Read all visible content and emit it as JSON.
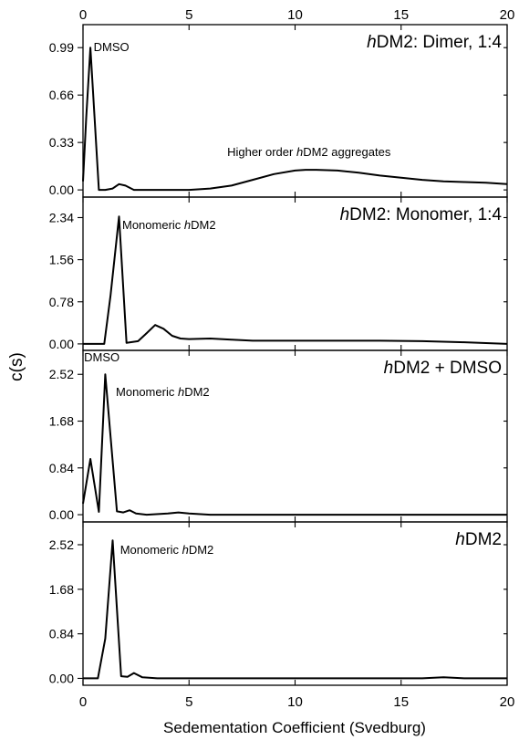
{
  "figure": {
    "ylabel": "c(s)",
    "xlabel": "Sedementation Coefficient (Svedburg)"
  },
  "chart_data": [
    {
      "type": "line",
      "title": "hDM2: Dimer, 1:4",
      "title_parts": [
        {
          "text": "h",
          "italic": true
        },
        {
          "text": "DM2: Dimer, 1:4",
          "italic": false
        }
      ],
      "xlim": [
        0,
        20
      ],
      "xticks": [
        0,
        5,
        10,
        15,
        20
      ],
      "ylim": [
        -0.05,
        1.15
      ],
      "yticks": [
        0.99,
        0.66,
        0.33,
        0.0
      ],
      "ytick_labels": [
        "0.99",
        "0.66",
        "0.33",
        "0.00"
      ],
      "x": [
        0,
        0.15,
        0.35,
        0.75,
        1.05,
        1.4,
        1.7,
        2.0,
        2.4,
        3.0,
        4.0,
        5.0,
        6.0,
        7.0,
        8.0,
        9.0,
        10.0,
        10.5,
        11.0,
        12.0,
        13.0,
        14.0,
        15.0,
        16.0,
        17.0,
        18.0,
        19.0,
        20.0
      ],
      "series": [
        {
          "values": [
            0.06,
            0.5,
            0.99,
            0.0,
            0.0,
            0.01,
            0.04,
            0.03,
            0.0,
            0.0,
            0.0,
            0.0,
            0.01,
            0.03,
            0.07,
            0.11,
            0.135,
            0.14,
            0.14,
            0.135,
            0.12,
            0.1,
            0.085,
            0.07,
            0.06,
            0.055,
            0.05,
            0.04
          ]
        }
      ],
      "annotations": [
        {
          "label_parts": [
            {
              "text": "DMSO",
              "italic": false
            }
          ],
          "x": 0.5,
          "y": 0.99
        },
        {
          "label_parts": [
            {
              "text": "Higher order ",
              "italic": false
            },
            {
              "text": "h",
              "italic": true
            },
            {
              "text": "DM2 aggregates",
              "italic": false
            }
          ],
          "x": 6.8,
          "y": 0.26
        }
      ]
    },
    {
      "type": "line",
      "title": "hDM2: Monomer, 1:4",
      "title_parts": [
        {
          "text": "h",
          "italic": true
        },
        {
          "text": "DM2: Monomer, 1:4",
          "italic": false
        }
      ],
      "xlim": [
        0,
        20
      ],
      "xticks": [
        0,
        5,
        10,
        15,
        20
      ],
      "ylim": [
        -0.12,
        2.72
      ],
      "yticks": [
        2.34,
        1.56,
        0.78,
        0.0
      ],
      "ytick_labels": [
        "2.34",
        "1.56",
        "0.78",
        "0.00"
      ],
      "x": [
        0,
        0.5,
        1.0,
        1.3,
        1.7,
        2.05,
        2.6,
        3.0,
        3.4,
        3.8,
        4.2,
        4.6,
        5.0,
        6.0,
        7.0,
        8.0,
        10.0,
        12.0,
        14.0,
        16.0,
        18.0,
        20.0
      ],
      "series": [
        {
          "values": [
            0.0,
            0.0,
            0.0,
            0.9,
            2.36,
            0.02,
            0.05,
            0.2,
            0.35,
            0.28,
            0.15,
            0.1,
            0.09,
            0.1,
            0.08,
            0.06,
            0.06,
            0.06,
            0.06,
            0.05,
            0.03,
            0.0
          ]
        }
      ],
      "annotations": [
        {
          "label_parts": [
            {
              "text": "Monomeric ",
              "italic": false
            },
            {
              "text": "h",
              "italic": true
            },
            {
              "text": "DM2",
              "italic": false
            }
          ],
          "x": 1.85,
          "y": 2.2
        }
      ]
    },
    {
      "type": "line",
      "title": "hDM2 + DMSO",
      "title_parts": [
        {
          "text": "h",
          "italic": true
        },
        {
          "text": "DM2 + DMSO",
          "italic": false
        }
      ],
      "xlim": [
        0,
        20
      ],
      "xticks": [
        0,
        5,
        10,
        15,
        20
      ],
      "ylim": [
        -0.13,
        2.95
      ],
      "yticks": [
        2.52,
        1.68,
        0.84,
        0.0
      ],
      "ytick_labels": [
        "2.52",
        "1.68",
        "0.84",
        "0.00"
      ],
      "x": [
        0,
        0.35,
        0.75,
        1.05,
        1.6,
        1.9,
        2.2,
        2.5,
        3.0,
        4.0,
        4.5,
        5.0,
        6.0,
        8.0,
        10.0,
        12.0,
        14.0,
        16.0,
        18.0,
        20.0
      ],
      "series": [
        {
          "values": [
            0.2,
            1.0,
            0.05,
            2.52,
            0.06,
            0.04,
            0.08,
            0.02,
            0.0,
            0.02,
            0.04,
            0.02,
            0.0,
            0.0,
            0.0,
            0.0,
            0.0,
            0.0,
            0.0,
            0.0
          ]
        }
      ],
      "annotations": [
        {
          "label_parts": [
            {
              "text": "DMSO",
              "italic": false
            }
          ],
          "x": 0.05,
          "y": 2.82
        },
        {
          "label_parts": [
            {
              "text": "Monomeric ",
              "italic": false
            },
            {
              "text": "h",
              "italic": true
            },
            {
              "text": "DM2",
              "italic": false
            }
          ],
          "x": 1.55,
          "y": 2.2
        }
      ]
    },
    {
      "type": "line",
      "title": "hDM2",
      "title_parts": [
        {
          "text": "h",
          "italic": true
        },
        {
          "text": "DM2",
          "italic": false
        }
      ],
      "xlim": [
        0,
        20
      ],
      "xticks": [
        0,
        5,
        10,
        15,
        20
      ],
      "ylim": [
        -0.13,
        2.95
      ],
      "yticks": [
        2.52,
        1.68,
        0.84,
        0.0
      ],
      "ytick_labels": [
        "2.52",
        "1.68",
        "0.84",
        "0.00"
      ],
      "x": [
        0,
        0.7,
        1.05,
        1.4,
        1.8,
        2.1,
        2.4,
        2.8,
        3.5,
        5.0,
        8.0,
        12.0,
        16.0,
        17.0,
        18.0,
        20.0
      ],
      "series": [
        {
          "values": [
            0.0,
            0.0,
            0.75,
            2.6,
            0.04,
            0.03,
            0.1,
            0.02,
            0.0,
            0.0,
            0.0,
            0.0,
            0.0,
            0.02,
            0.0,
            0.0
          ]
        }
      ],
      "annotations": [
        {
          "label_parts": [
            {
              "text": "Monomeric ",
              "italic": false
            },
            {
              "text": "h",
              "italic": true
            },
            {
              "text": "DM2",
              "italic": false
            }
          ],
          "x": 1.75,
          "y": 2.42
        }
      ]
    }
  ]
}
